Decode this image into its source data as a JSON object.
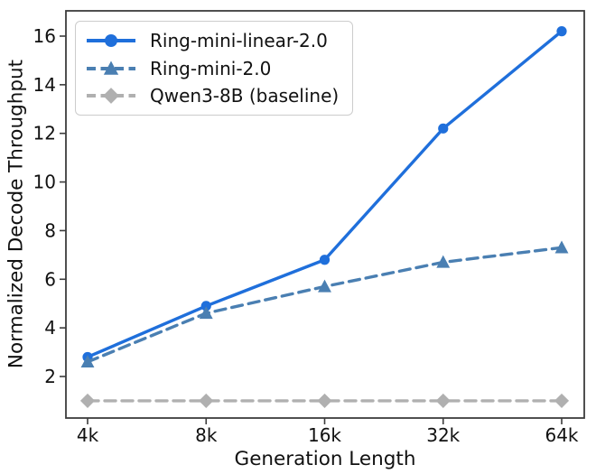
{
  "chart_data": {
    "type": "line",
    "title": "",
    "xlabel": "Generation Length",
    "ylabel": "Normalized Decode Throughput",
    "categories": [
      "4k",
      "8k",
      "16k",
      "32k",
      "64k"
    ],
    "y_ticks": [
      2,
      4,
      6,
      8,
      10,
      12,
      14,
      16
    ],
    "ylim": [
      0.3,
      17.1
    ],
    "grid": false,
    "legend_position": "upper-left",
    "axis_color": "#3c3c3c",
    "text_color": "#111111",
    "series": [
      {
        "name": "Ring-mini-linear-2.0",
        "values": [
          2.8,
          4.9,
          6.8,
          12.2,
          16.2
        ],
        "color": "#1f6fdb",
        "line_style": "solid",
        "marker": "circle"
      },
      {
        "name": "Ring-mini-2.0",
        "values": [
          2.6,
          4.6,
          5.7,
          6.7,
          7.3
        ],
        "color": "#4a7fb2",
        "line_style": "dashed",
        "marker": "triangle"
      },
      {
        "name": "Qwen3-8B (baseline)",
        "values": [
          1.0,
          1.0,
          1.0,
          1.0,
          1.0
        ],
        "color": "#b0b0b0",
        "line_style": "dashed",
        "marker": "diamond"
      }
    ]
  }
}
